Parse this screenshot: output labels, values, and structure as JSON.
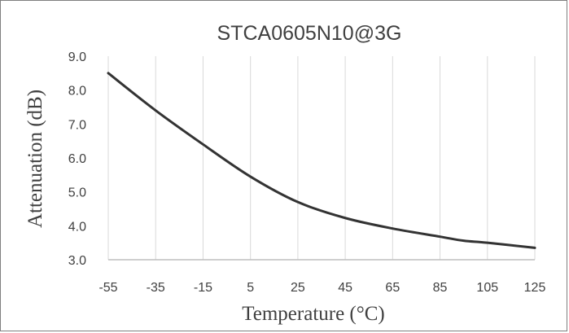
{
  "chart_data": {
    "type": "line",
    "title": "STCA0605N10@3G",
    "xlabel": "Temperature (°C)",
    "ylabel": "Attenuation (dB)",
    "x_ticks": [
      "-55",
      "-35",
      "-15",
      "5",
      "25",
      "45",
      "65",
      "85",
      "105",
      "125"
    ],
    "y_ticks": [
      "3.0",
      "4.0",
      "5.0",
      "6.0",
      "7.0",
      "8.0",
      "9.0"
    ],
    "xlim": [
      -55,
      125
    ],
    "ylim": [
      3,
      9
    ],
    "grid": "vertical",
    "legend": "none",
    "series": [
      {
        "x": [
          -55,
          -35,
          -15,
          5,
          25,
          45,
          65,
          85,
          95,
          105,
          125
        ],
        "values": [
          8.5,
          7.4,
          6.4,
          5.45,
          4.7,
          4.23,
          3.92,
          3.68,
          3.56,
          3.5,
          3.35
        ]
      }
    ],
    "colors": {
      "line": "#333333",
      "grid": "#d9d9d9",
      "axis": "#bfbfbf",
      "text": "#404040",
      "border": "#7f7f7f"
    }
  }
}
